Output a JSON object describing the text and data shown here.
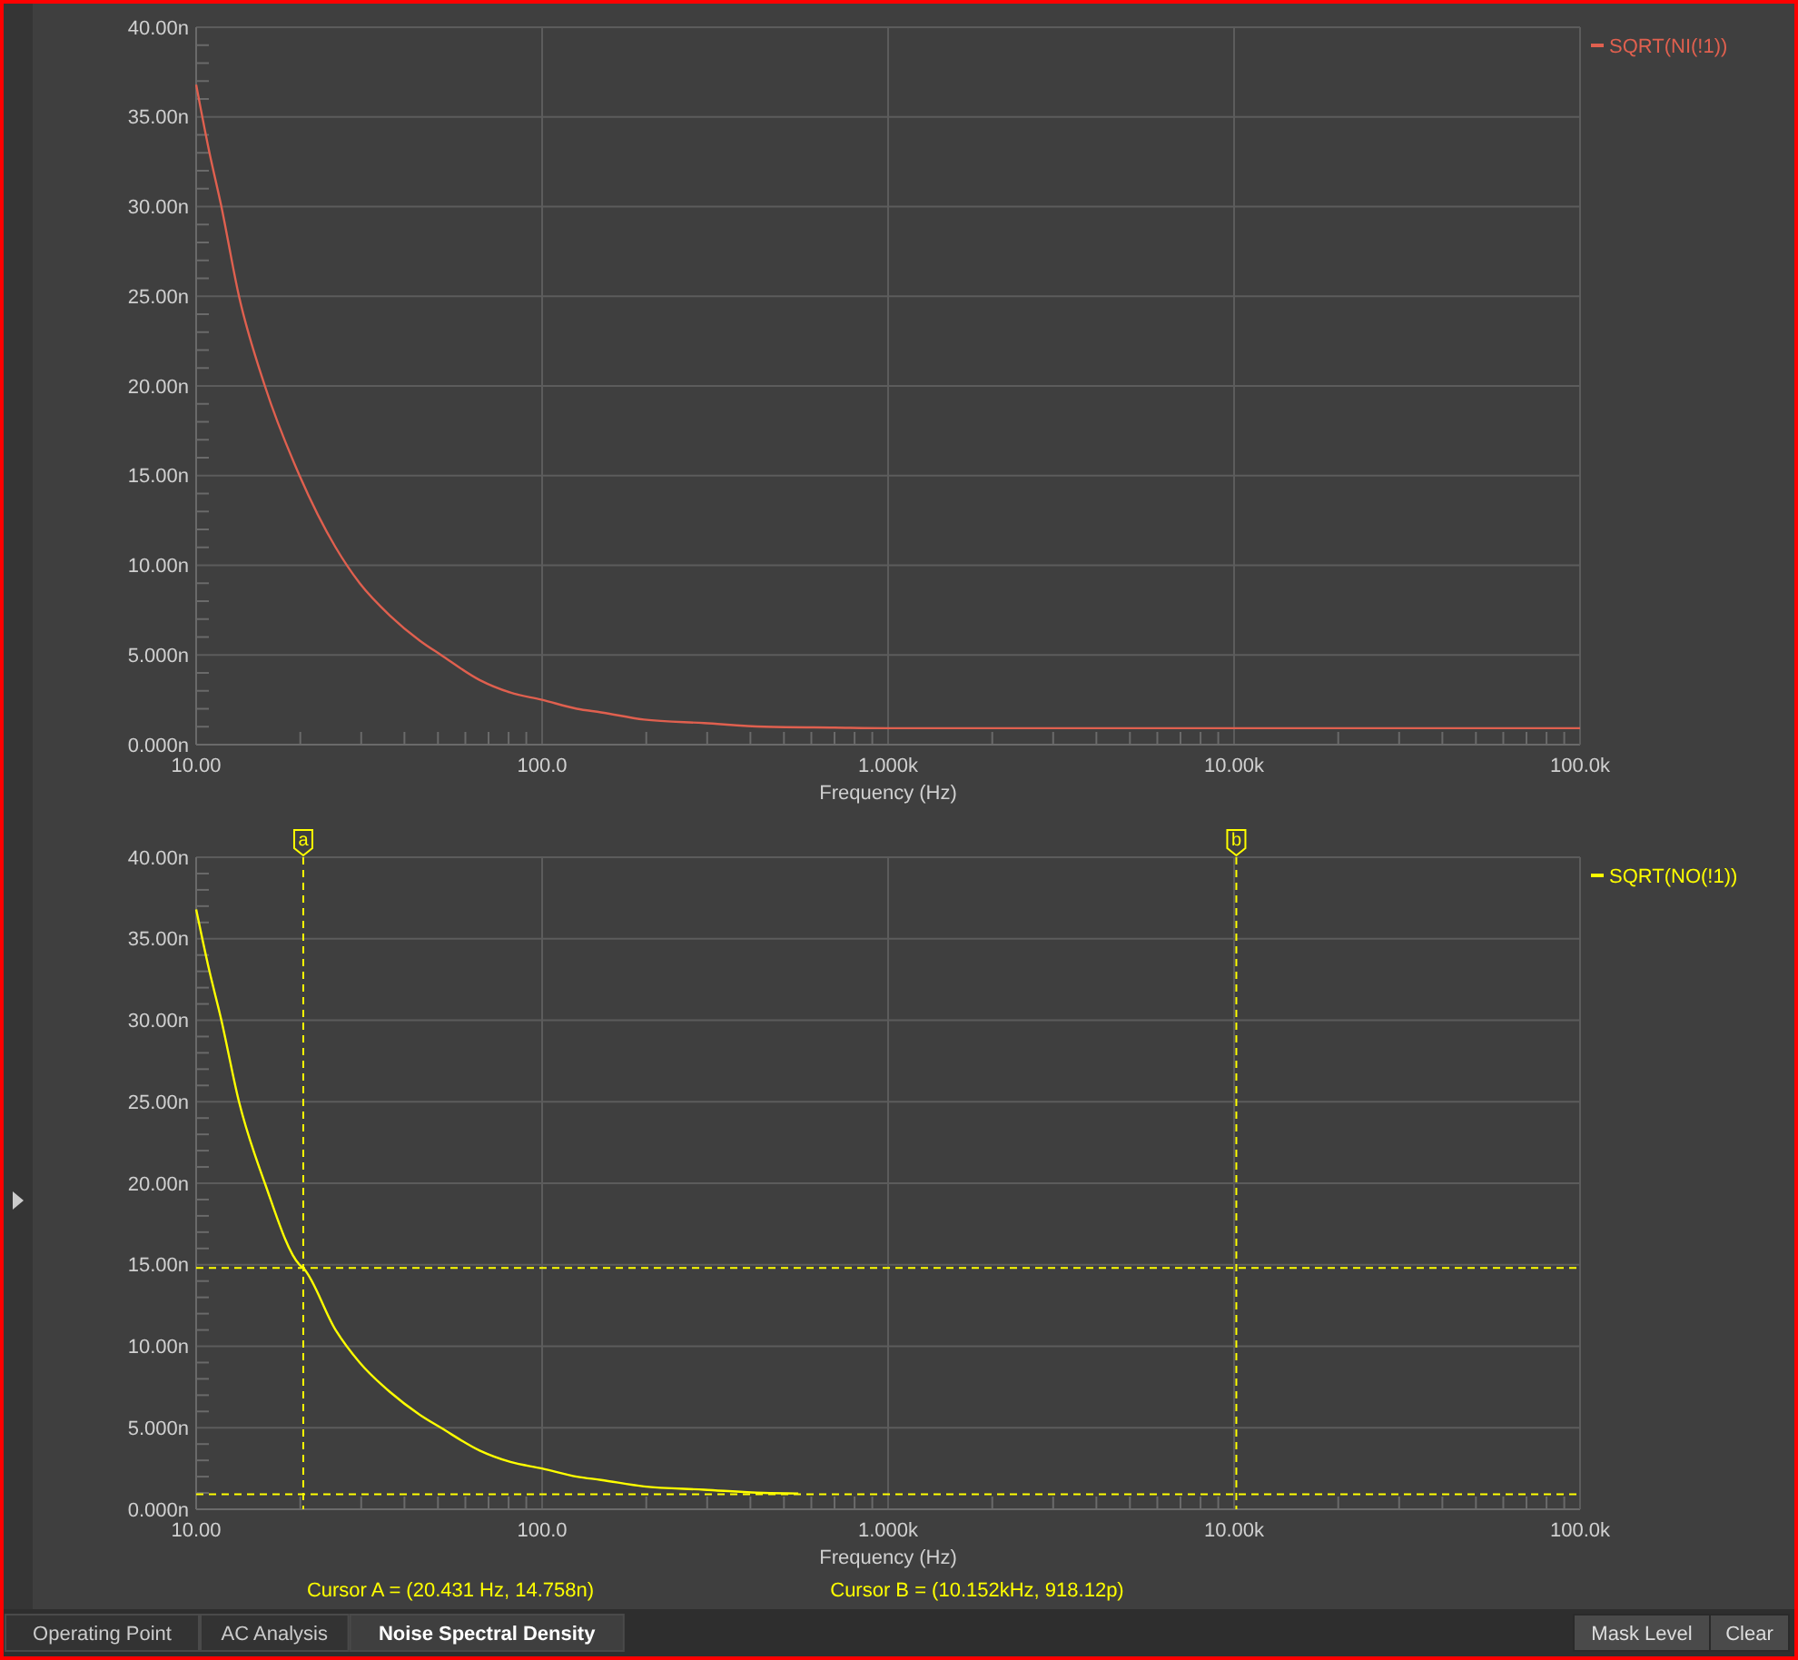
{
  "chart_data": [
    {
      "type": "line",
      "xlabel": "Frequency (Hz)",
      "log": "x",
      "grid": true,
      "legend": "top right",
      "line_style": "solid",
      "xlim": [
        10,
        100000
      ],
      "xticks": [
        {
          "value": 10,
          "label": "10.00"
        },
        {
          "value": 100,
          "label": "100.0"
        },
        {
          "value": 1000,
          "label": "1.000k"
        },
        {
          "value": 10000,
          "label": "10.00k"
        },
        {
          "value": 100000,
          "label": "100.0k"
        }
      ],
      "ylim": [
        0,
        40
      ],
      "yticks": [
        {
          "value": 0,
          "label": "0.000n"
        },
        {
          "value": 5,
          "label": "5.000n"
        },
        {
          "value": 10,
          "label": "10.00n"
        },
        {
          "value": 15,
          "label": "15.00n"
        },
        {
          "value": 20,
          "label": "20.00n"
        },
        {
          "value": 25,
          "label": "25.00n"
        },
        {
          "value": 30,
          "label": "30.00n"
        },
        {
          "value": 35,
          "label": "35.00n"
        },
        {
          "value": 40,
          "label": "40.00n"
        }
      ],
      "series": [
        {
          "name": "SQRT(NI(!1))",
          "color": "#e0604f",
          "x": [
            10,
            10.9,
            11.8,
            13.3,
            15.8,
            19.9,
            25.3,
            29.7,
            36.3,
            44.3,
            51,
            66,
            81,
            100,
            126,
            148,
            197,
            294,
            438,
            700,
            1000,
            3000,
            10000,
            30000,
            100000
          ],
          "values": [
            36.8,
            33.1,
            30.1,
            25.0,
            20.0,
            15.0,
            11.0,
            9.0,
            7.2,
            5.8,
            5.0,
            3.6,
            2.9,
            2.5,
            2.0,
            1.8,
            1.4,
            1.2,
            1.0,
            0.95,
            0.92,
            0.92,
            0.92,
            0.92,
            0.92
          ]
        }
      ]
    },
    {
      "type": "line",
      "xlabel": "Frequency (Hz)",
      "log": "x",
      "grid": true,
      "legend": "top right",
      "line_style": "solid",
      "xlim": [
        10,
        100000
      ],
      "xticks": [
        {
          "value": 10,
          "label": "10.00"
        },
        {
          "value": 100,
          "label": "100.0"
        },
        {
          "value": 1000,
          "label": "1.000k"
        },
        {
          "value": 10000,
          "label": "10.00k"
        },
        {
          "value": 100000,
          "label": "100.0k"
        }
      ],
      "ylim": [
        0,
        40
      ],
      "yticks": [
        {
          "value": 0,
          "label": "0.000n"
        },
        {
          "value": 5,
          "label": "5.000n"
        },
        {
          "value": 10,
          "label": "10.00n"
        },
        {
          "value": 15,
          "label": "15.00n"
        },
        {
          "value": 20,
          "label": "20.00n"
        },
        {
          "value": 25,
          "label": "25.00n"
        },
        {
          "value": 30,
          "label": "30.00n"
        },
        {
          "value": 35,
          "label": "35.00n"
        },
        {
          "value": 40,
          "label": "40.00n"
        }
      ],
      "series": [
        {
          "name": "SQRT(NO(!1))",
          "color": "#ffff00",
          "x": [
            10,
            10.9,
            11.8,
            13.3,
            15.8,
            19.9,
            20.4,
            25.3,
            29.7,
            36.3,
            44.3,
            51,
            66,
            81,
            100,
            126,
            148,
            197,
            294,
            438,
            550
          ],
          "values": [
            36.8,
            33.1,
            30.1,
            25.0,
            20.0,
            15.0,
            14.8,
            11.0,
            9.0,
            7.2,
            5.8,
            5.0,
            3.6,
            2.9,
            2.5,
            2.0,
            1.8,
            1.4,
            1.2,
            1.0,
            0.97
          ]
        }
      ],
      "ref_lines": [
        {
          "axis": "x",
          "value": 20.4,
          "label": "a",
          "color": "#ffff00",
          "line_style": "dashed"
        },
        {
          "axis": "x",
          "value": 10150,
          "label": "b",
          "color": "#ffff00",
          "line_style": "dashed"
        },
        {
          "axis": "y",
          "value": 14.8,
          "label": null,
          "color": "#ffff00",
          "line_style": "dashed"
        },
        {
          "axis": "y",
          "value": 0.92,
          "label": null,
          "color": "#ffff00",
          "line_style": "dashed"
        }
      ],
      "annotations": [
        "Cursor A = (20.431 Hz, 14.758n)",
        "Cursor B = (10.152kHz, 918.12p)"
      ]
    },
    {
      "type": "other",
      "annotations": [
        "Operating Point",
        "AC Analysis",
        "Noise Spectral Density",
        "Mask Level",
        "Clear"
      ]
    }
  ]
}
